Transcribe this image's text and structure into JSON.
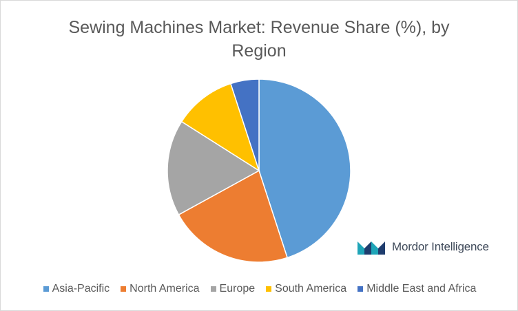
{
  "chart_data": {
    "type": "pie",
    "title": "Sewing Machines Market: Revenue Share (%), by Region",
    "categories": [
      "Asia-Pacific",
      "North America",
      "Europe",
      "South America",
      "Middle East and Africa"
    ],
    "values": [
      45,
      22,
      17,
      11,
      5
    ],
    "colors": [
      "#5b9bd5",
      "#ed7d31",
      "#a5a5a5",
      "#ffc000",
      "#4472c4"
    ],
    "legend_position": "bottom"
  },
  "branding": {
    "logo_text": "Mordor Intelligence",
    "logo_icon": "mordor-intelligence-logo-icon",
    "logo_colors": [
      "#1fa5b8",
      "#1f3d6e"
    ]
  }
}
